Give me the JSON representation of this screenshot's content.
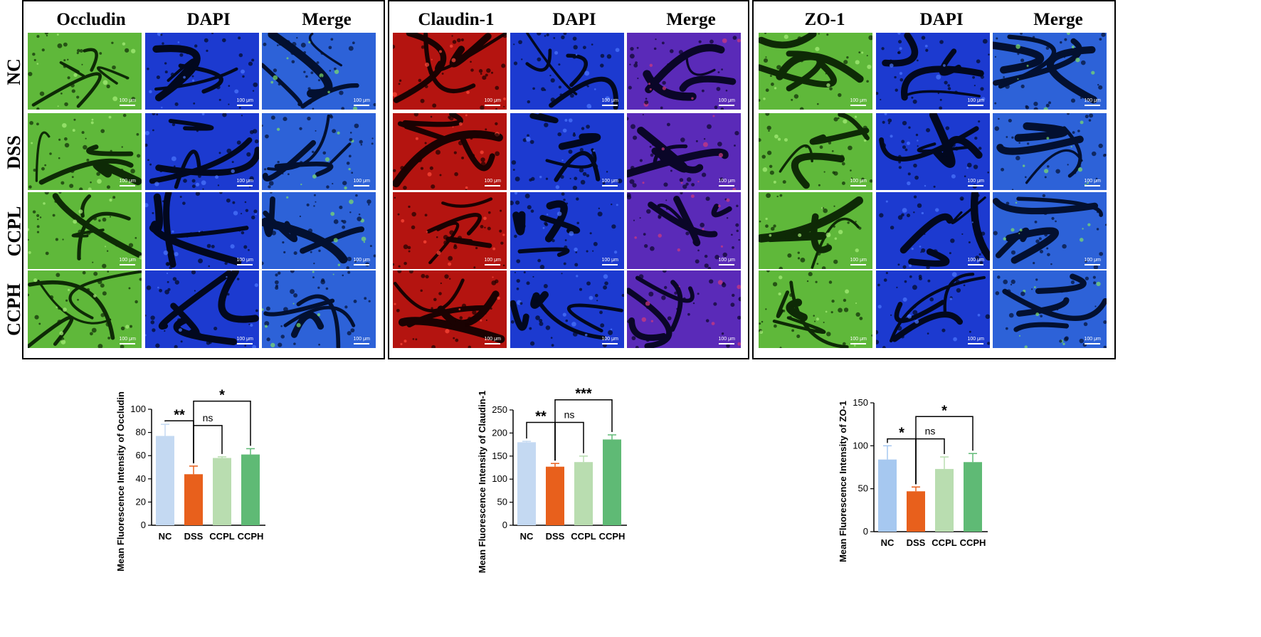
{
  "panels": [
    {
      "columns": [
        "Occludin",
        "DAPI",
        "Merge"
      ],
      "rows": [
        "NC",
        "DSS",
        "CCPL",
        "CCPH"
      ],
      "colors": [
        "green",
        "blue",
        "merge-green"
      ]
    },
    {
      "columns": [
        "Claudin-1",
        "DAPI",
        "Merge"
      ],
      "colors": [
        "red",
        "blue",
        "merge-red"
      ]
    },
    {
      "columns": [
        "ZO-1",
        "DAPI",
        "Merge"
      ],
      "colors": [
        "green",
        "blue",
        "merge-green"
      ]
    }
  ],
  "scale_bar_label": "100 μm",
  "palette": {
    "nc": "#c4d9f2",
    "nc_zo1": "#a6c8f0",
    "dss": "#e8601c",
    "ccpl": "#b9ddb0",
    "ccph": "#5fba75"
  },
  "chart_data": [
    {
      "type": "bar",
      "categories": [
        "NC",
        "DSS",
        "CCPL",
        "CCPH"
      ],
      "values": [
        77,
        44,
        58,
        61
      ],
      "errors": [
        10,
        7,
        1,
        5
      ],
      "ylabel": "Mean Fluorescence Intensity of Occludin",
      "ylim": [
        0,
        100
      ],
      "yticks": [
        0,
        20,
        40,
        60,
        80,
        100
      ],
      "significance": [
        {
          "from": 0,
          "to": 1,
          "label": "**",
          "level": 90
        },
        {
          "from": 1,
          "to": 2,
          "label": "ns",
          "level": 86
        },
        {
          "from": 1,
          "to": 3,
          "label": "*",
          "level": 107
        }
      ]
    },
    {
      "type": "bar",
      "categories": [
        "NC",
        "DSS",
        "CCPL",
        "CCPH"
      ],
      "values": [
        180,
        127,
        137,
        186
      ],
      "errors": [
        2,
        7,
        13,
        10
      ],
      "ylabel": "Mean Fluorescence Intensity of Claudin-1",
      "ylim": [
        0,
        250
      ],
      "yticks": [
        0,
        50,
        100,
        150,
        200,
        250
      ],
      "significance": [
        {
          "from": 0,
          "to": 1,
          "label": "**",
          "level": 223
        },
        {
          "from": 1,
          "to": 2,
          "label": "ns",
          "level": 223
        },
        {
          "from": 1,
          "to": 3,
          "label": "***",
          "level": 272
        }
      ]
    },
    {
      "type": "bar",
      "categories": [
        "NC",
        "DSS",
        "CCPL",
        "CCPH"
      ],
      "values": [
        84,
        47,
        73,
        81
      ],
      "errors": [
        16,
        5,
        14,
        10
      ],
      "ylabel": "Mean Fluorescence Intensity of ZO-1",
      "ylim": [
        0,
        150
      ],
      "yticks": [
        0,
        50,
        100,
        150
      ],
      "significance": [
        {
          "from": 0,
          "to": 1,
          "label": "*",
          "level": 108
        },
        {
          "from": 1,
          "to": 2,
          "label": "ns",
          "level": 108
        },
        {
          "from": 1,
          "to": 3,
          "label": "*",
          "level": 134
        }
      ]
    }
  ]
}
